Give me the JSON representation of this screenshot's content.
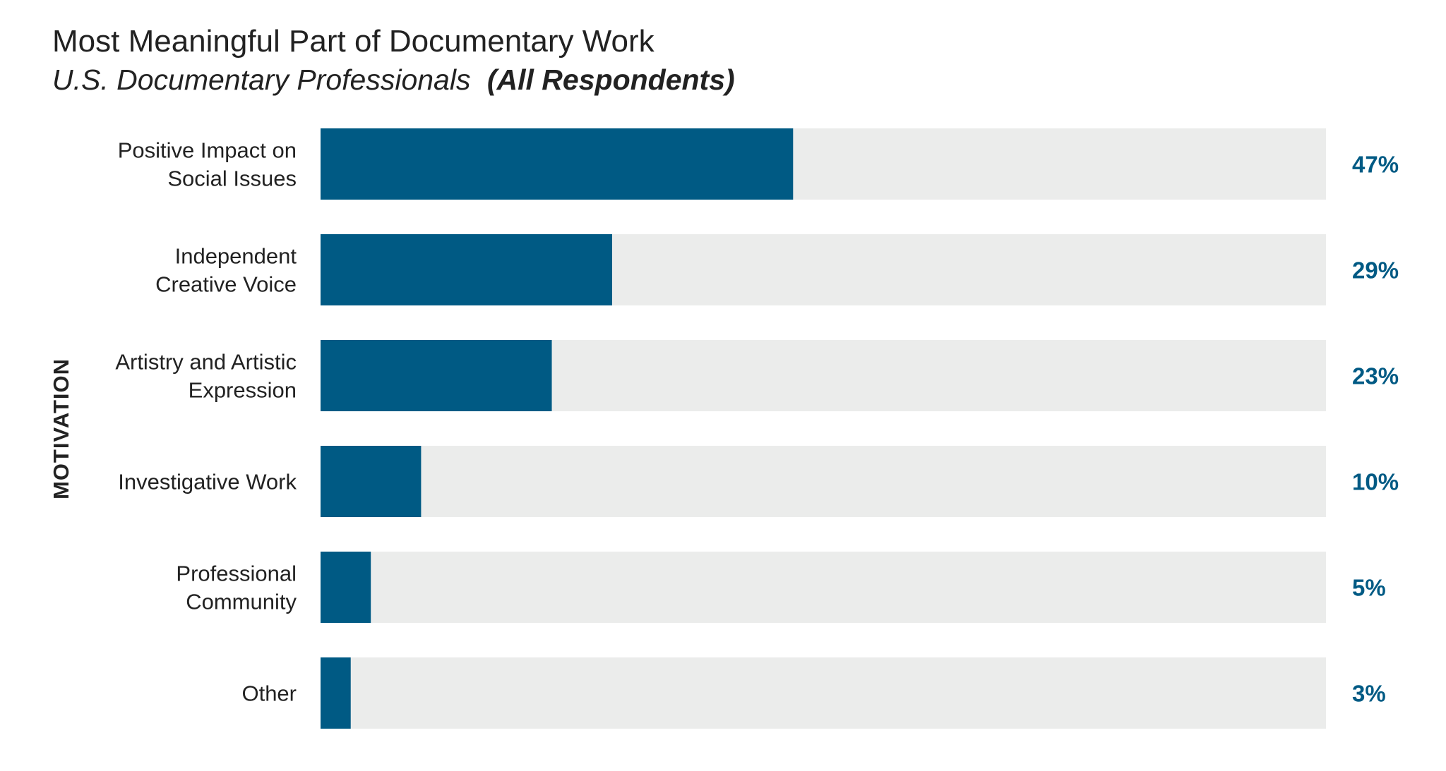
{
  "chart_data": {
    "type": "bar",
    "orientation": "horizontal",
    "title": "Most Meaningful Part of Documentary Work",
    "subtitle": "U.S. Documentary Professionals",
    "subtitle_emphasis": "(All Respondents)",
    "ylabel": "MOTIVATION",
    "xlabel": "",
    "xlim": [
      0,
      100
    ],
    "grid": false,
    "legend": "none",
    "categories": [
      [
        "Positive Impact on",
        "Social Issues"
      ],
      [
        "Independent",
        "Creative Voice"
      ],
      [
        "Artistry and Artistic",
        "Expression"
      ],
      [
        "Investigative Work"
      ],
      [
        "Professional",
        "Community"
      ],
      [
        "Other"
      ]
    ],
    "values": [
      47,
      29,
      23,
      10,
      5,
      3
    ],
    "value_labels": [
      "47%",
      "29%",
      "23%",
      "10%",
      "5%",
      "3%"
    ],
    "colors": {
      "bar": "#005a84",
      "track": "#ebeceb",
      "value_text": "#005a84"
    }
  }
}
